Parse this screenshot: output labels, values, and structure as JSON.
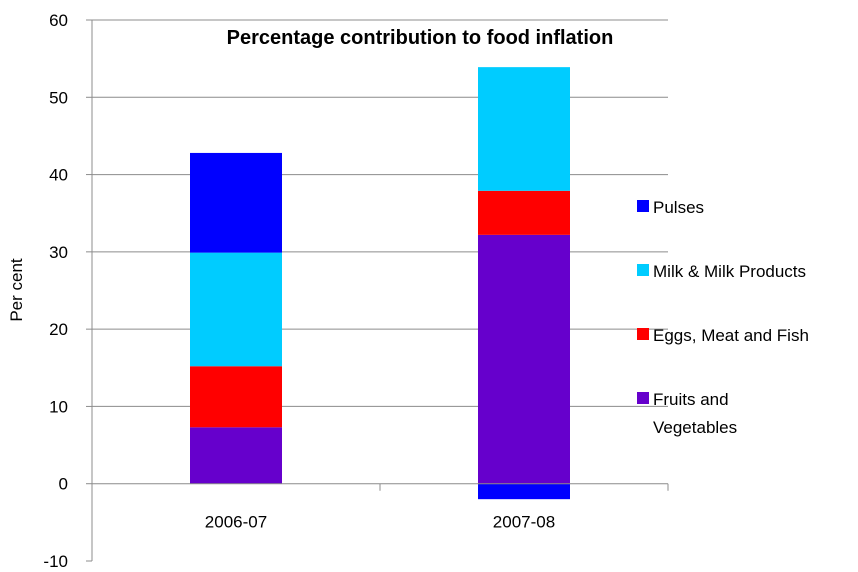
{
  "chart_data": {
    "type": "bar",
    "stacked": true,
    "title": "Percentage contribution to food inflation",
    "xlabel": "",
    "ylabel": "Per cent",
    "categories": [
      "2006-07",
      "2007-08"
    ],
    "ylim": [
      -10,
      60
    ],
    "yticks": [
      -10,
      0,
      10,
      20,
      30,
      40,
      50,
      60
    ],
    "grid": true,
    "legend_position": "right",
    "series": [
      {
        "name": "Fruits and Vegetables",
        "color": "#6600CC",
        "values": [
          7.3,
          32.2
        ]
      },
      {
        "name": "Eggs, Meat and Fish",
        "color": "#FF0000",
        "values": [
          7.9,
          5.7
        ]
      },
      {
        "name": "Milk & Milk Products",
        "color": "#00CCFF",
        "values": [
          14.7,
          16.0
        ]
      },
      {
        "name": "Pulses",
        "color": "#0000FF",
        "values": [
          12.9,
          -2.0
        ]
      }
    ],
    "legend_order": [
      "Pulses",
      "Milk & Milk Products",
      "Eggs, Meat and Fish",
      "Fruits and Vegetables"
    ]
  }
}
